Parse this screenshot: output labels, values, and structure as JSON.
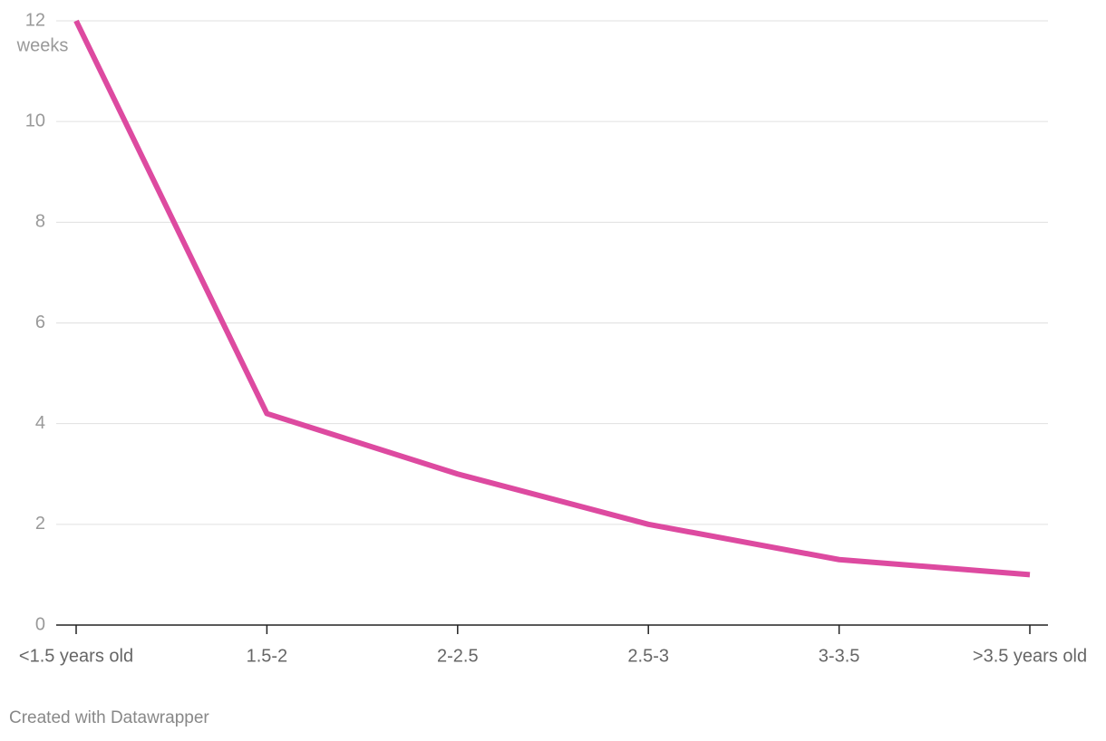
{
  "chart_data": {
    "type": "line",
    "y_unit": "weeks",
    "categories": [
      "<1.5 years old",
      "1.5-2",
      "2-2.5",
      "2.5-3",
      "3-3.5",
      ">3.5 years old"
    ],
    "series": [
      {
        "color": "#dd4aa0",
        "values": [
          12,
          4.2,
          3,
          2,
          1.3,
          1
        ]
      }
    ],
    "ylim": [
      0,
      12
    ],
    "yticks": [
      0,
      2,
      4,
      6,
      8,
      10,
      12
    ],
    "grid": true,
    "credit": "Created with Datawrapper"
  }
}
